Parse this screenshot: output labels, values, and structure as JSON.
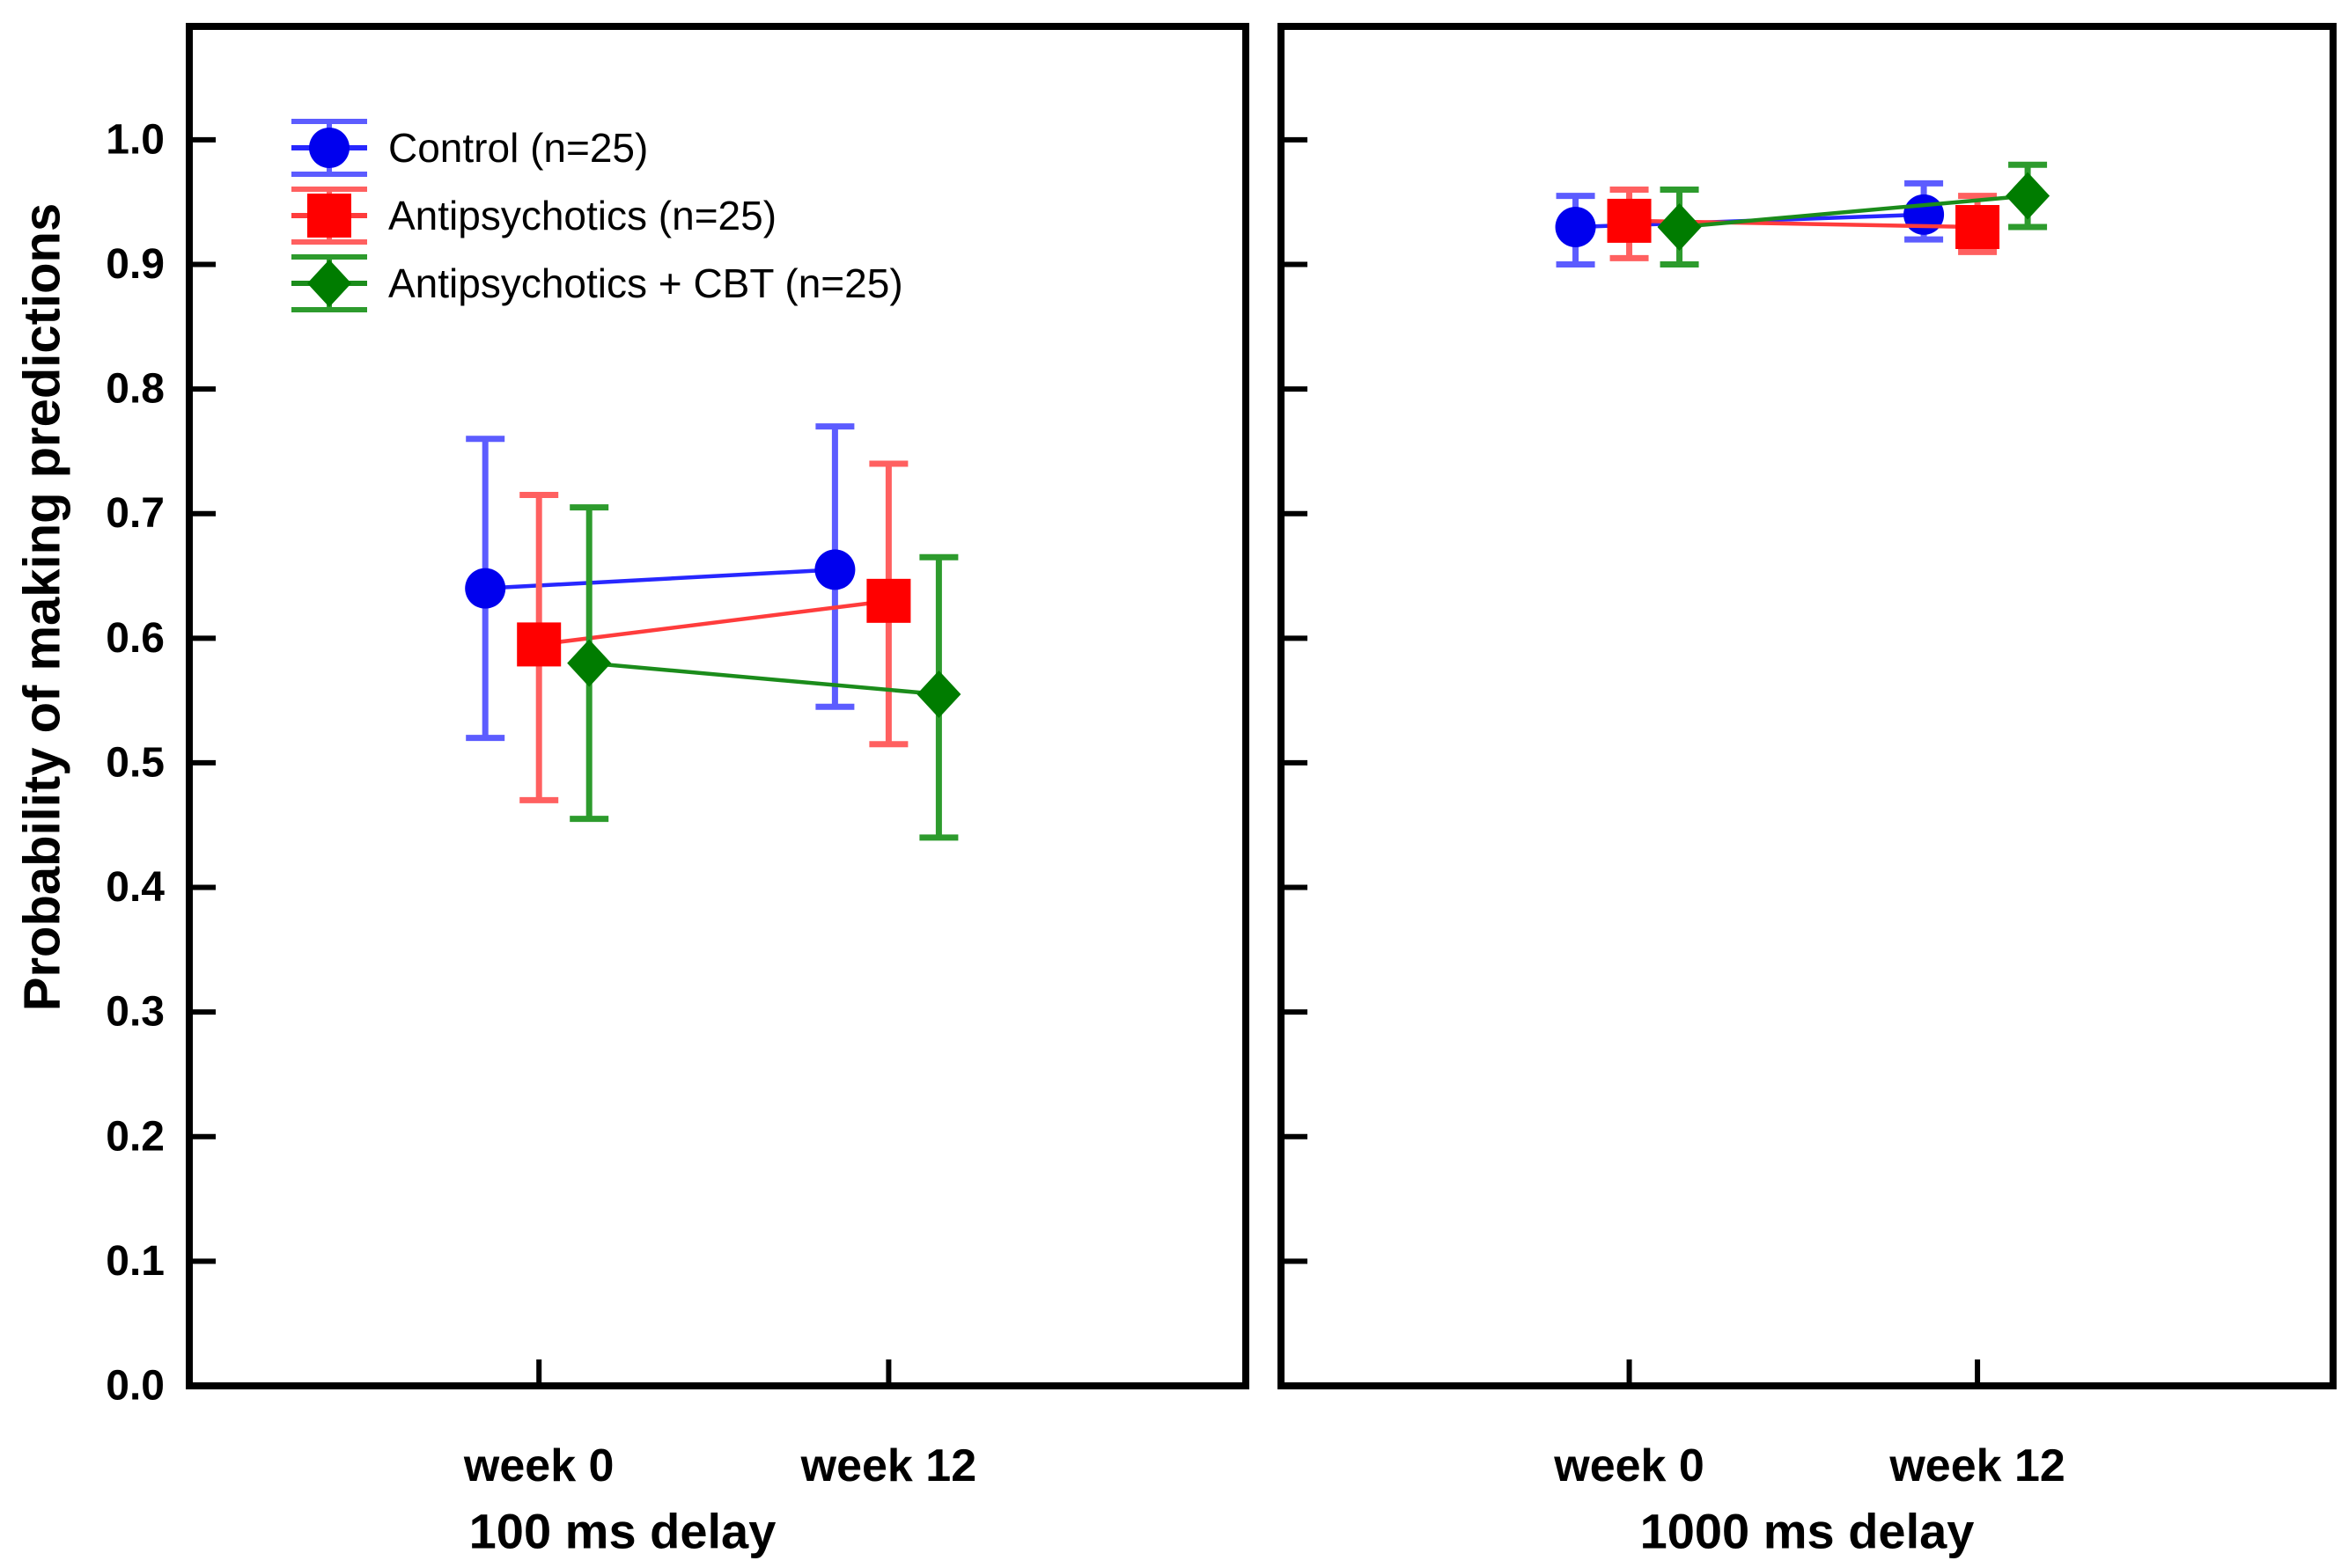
{
  "figure": {
    "background": "#ffffff"
  },
  "chart_data": {
    "type": "line",
    "ylabel": "Probability of making predictions",
    "ylim": [
      0.0,
      1.091
    ],
    "yticks": [
      0.0,
      0.1,
      0.2,
      0.3,
      0.4,
      0.5,
      0.6,
      0.7,
      0.8,
      0.9,
      1.0
    ],
    "categories": [
      "week 0",
      "week 12"
    ],
    "grid": false,
    "legend_position": "top-left-inside-first-panel",
    "legend_entries": [
      "Control (n=25)",
      "Antipsychotics (n=25)",
      "Antipsychotics + CBT (n=25)"
    ],
    "panels": [
      {
        "title": "100 ms delay",
        "show_y_tick_labels": true,
        "series": [
          {
            "name": "Control (n=25)",
            "marker": "circle",
            "color": "#0000ee",
            "error_color": "#5c5cff",
            "line_color": "#2727ff",
            "values": [
              0.64,
              0.655
            ],
            "err_low": [
              0.52,
              0.545
            ],
            "err_high": [
              0.76,
              0.77
            ]
          },
          {
            "name": "Antipsychotics (n=25)",
            "marker": "square",
            "color": "#ff0000",
            "error_color": "#ff6060",
            "line_color": "#ff3c3c",
            "values": [
              0.595,
              0.63
            ],
            "err_low": [
              0.47,
              0.515
            ],
            "err_high": [
              0.715,
              0.74
            ]
          },
          {
            "name": "Antipsychotics + CBT (n=25)",
            "marker": "diamond",
            "color": "#007c00",
            "error_color": "#2d9b2d",
            "line_color": "#1b8c1b",
            "values": [
              0.58,
              0.555
            ],
            "err_low": [
              0.455,
              0.44
            ],
            "err_high": [
              0.705,
              0.665
            ]
          }
        ]
      },
      {
        "title": "1000 ms delay",
        "show_y_tick_labels": false,
        "series": [
          {
            "name": "Control (n=25)",
            "marker": "circle",
            "color": "#0000ee",
            "error_color": "#5c5cff",
            "line_color": "#2727ff",
            "values": [
              0.93,
              0.94
            ],
            "err_low": [
              0.9,
              0.92
            ],
            "err_high": [
              0.955,
              0.965
            ]
          },
          {
            "name": "Antipsychotics (n=25)",
            "marker": "square",
            "color": "#ff0000",
            "error_color": "#ff6060",
            "line_color": "#ff3c3c",
            "values": [
              0.935,
              0.93
            ],
            "err_low": [
              0.905,
              0.91
            ],
            "err_high": [
              0.96,
              0.955
            ]
          },
          {
            "name": "Antipsychotics + CBT (n=25)",
            "marker": "diamond",
            "color": "#007c00",
            "error_color": "#2d9b2d",
            "line_color": "#1b8c1b",
            "values": [
              0.93,
              0.955
            ],
            "err_low": [
              0.9,
              0.93
            ],
            "err_high": [
              0.96,
              0.98
            ]
          }
        ]
      }
    ]
  }
}
